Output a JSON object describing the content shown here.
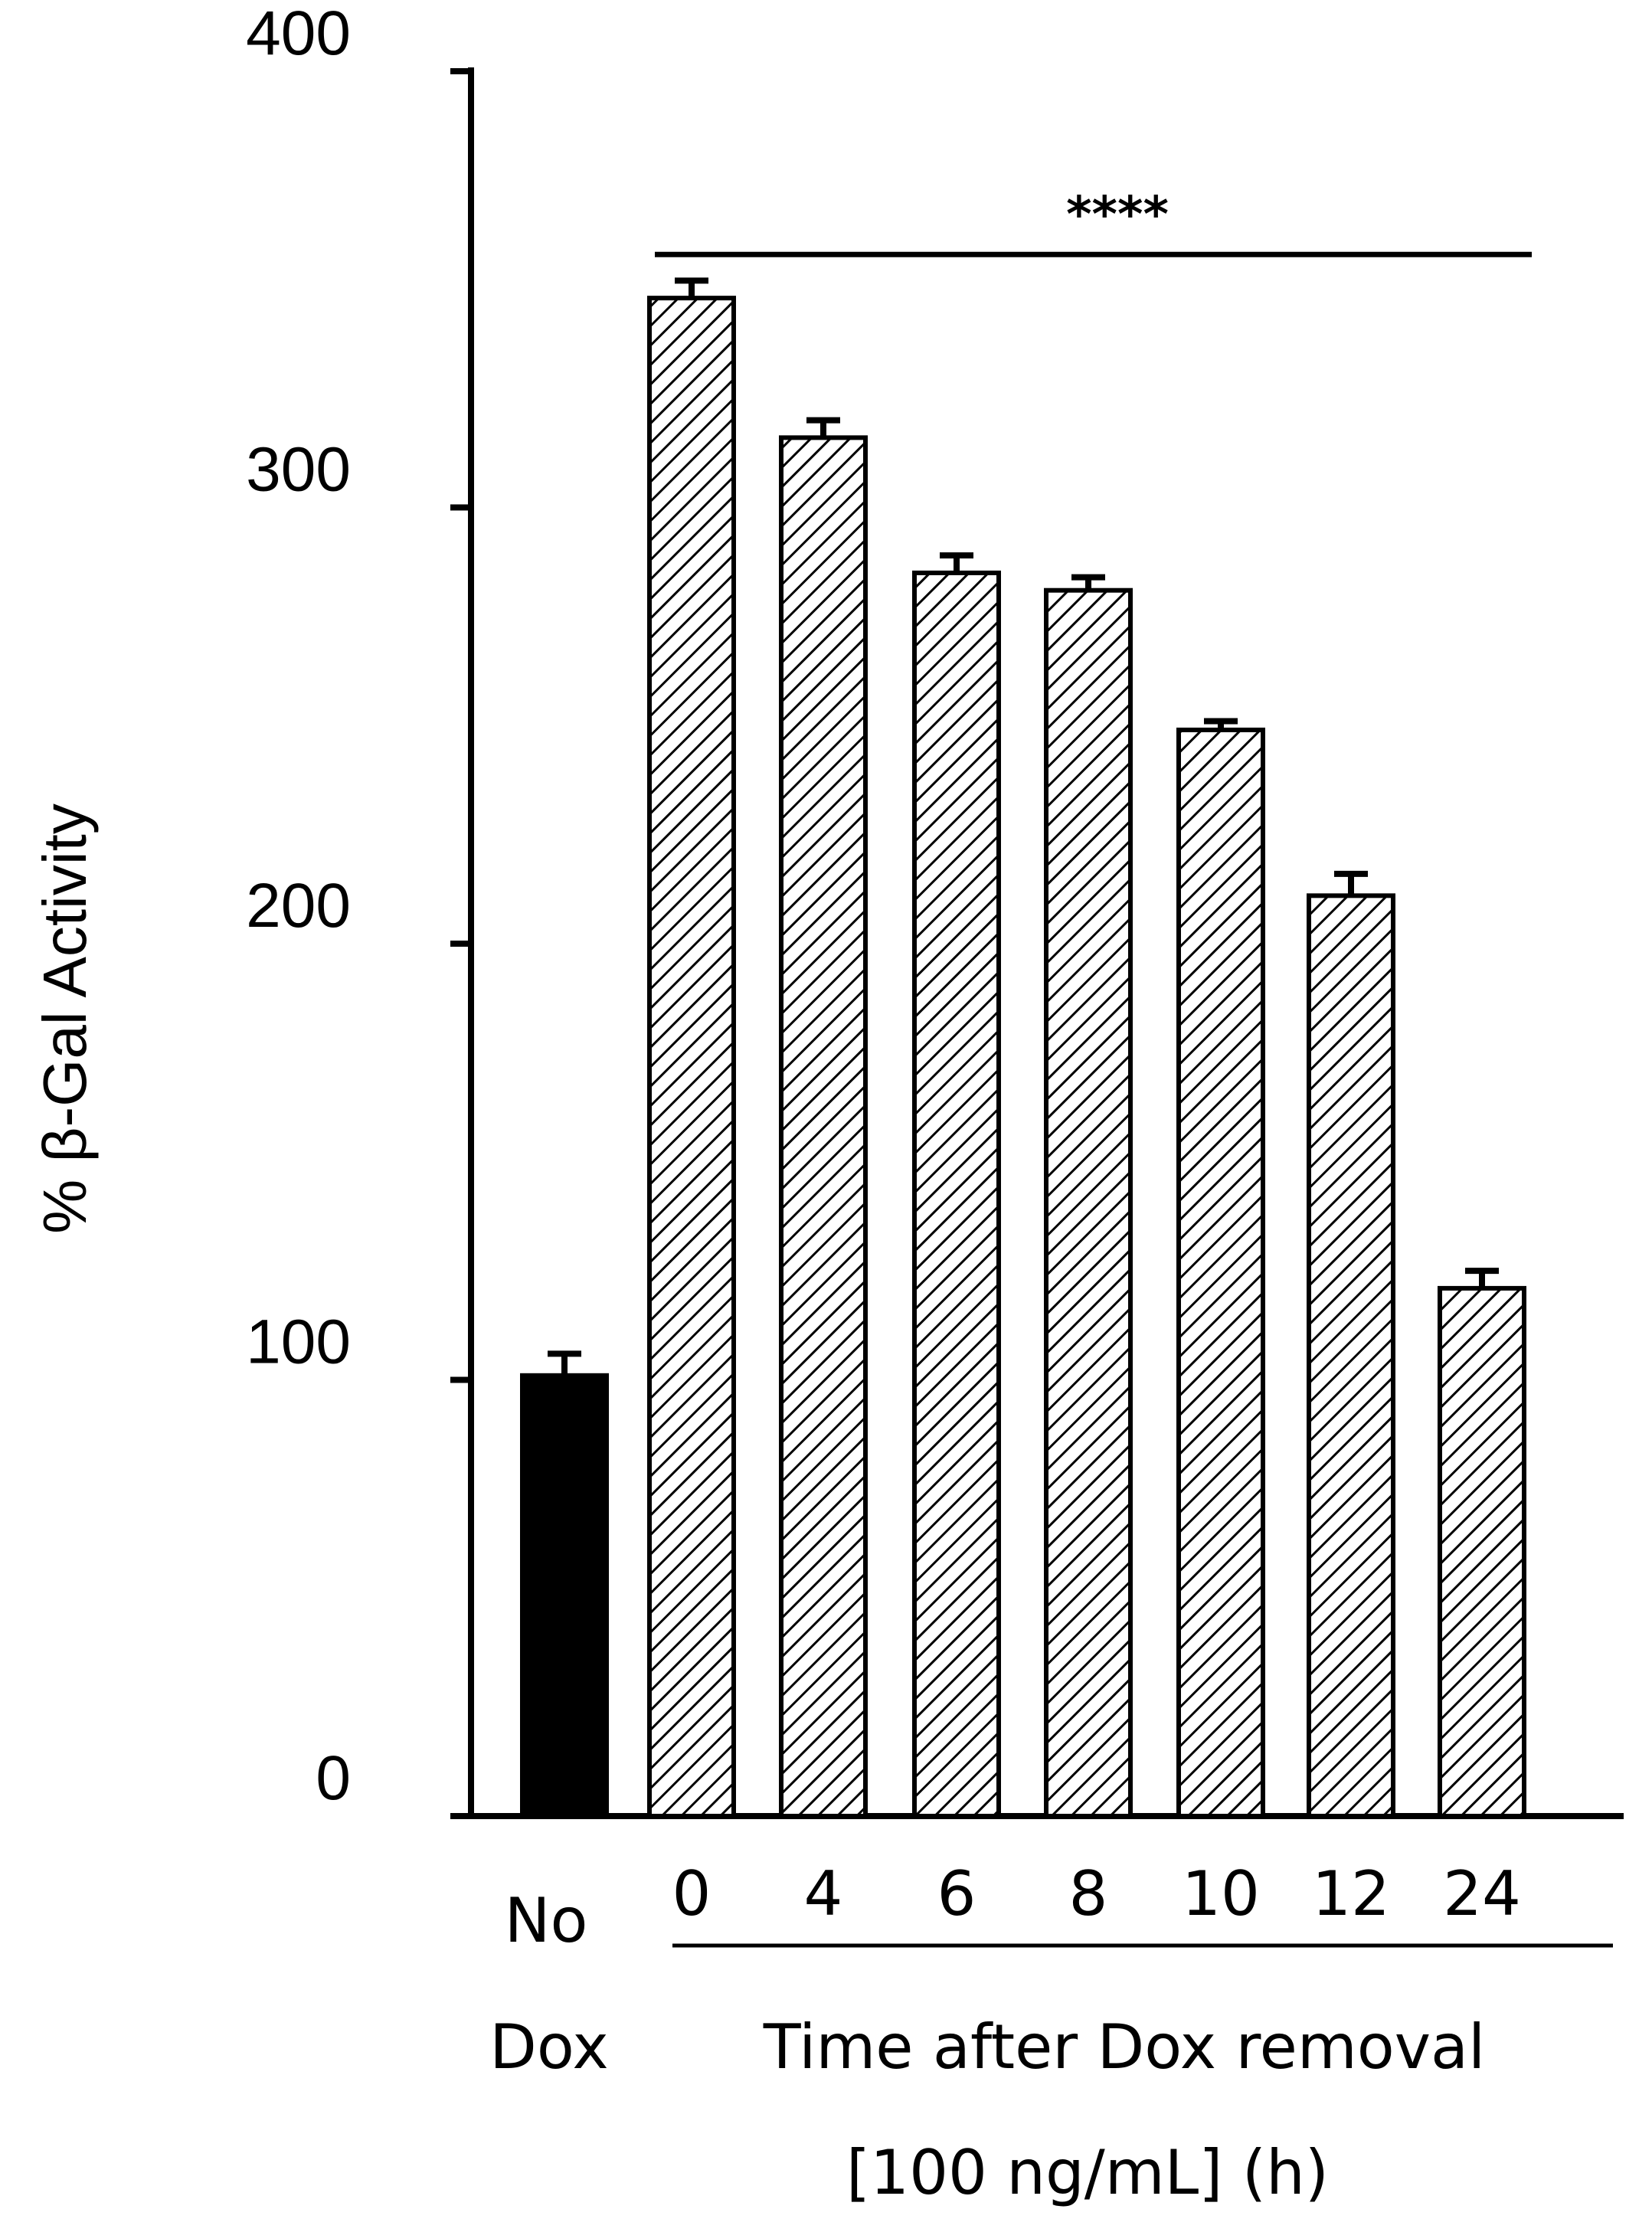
{
  "chart_data": {
    "type": "bar",
    "title": "",
    "ylabel": "% β-Gal Activity",
    "ylim": [
      0,
      400
    ],
    "yticks": [
      "0",
      "100",
      "200",
      "300",
      "400"
    ],
    "grid": false,
    "categories": [
      "No Dox",
      "0",
      "4",
      "6",
      "8",
      "10",
      "12",
      "24"
    ],
    "control_label_line1": "No",
    "control_label_line2": "Dox",
    "time_labels": [
      "0",
      "4",
      "6",
      "8",
      "10",
      "12",
      "24"
    ],
    "xlabel_line1": "Time after Dox removal",
    "xlabel_line2": "[100 ng/mL] (h)",
    "values": [
      101,
      348,
      316,
      285,
      281,
      249,
      211,
      121
    ],
    "errors": [
      5,
      4,
      4,
      4,
      3,
      2,
      5,
      4
    ],
    "fills": [
      "solid",
      "hatched",
      "hatched",
      "hatched",
      "hatched",
      "hatched",
      "hatched",
      "hatched"
    ],
    "significance": {
      "label": "****",
      "level": 358
    }
  }
}
